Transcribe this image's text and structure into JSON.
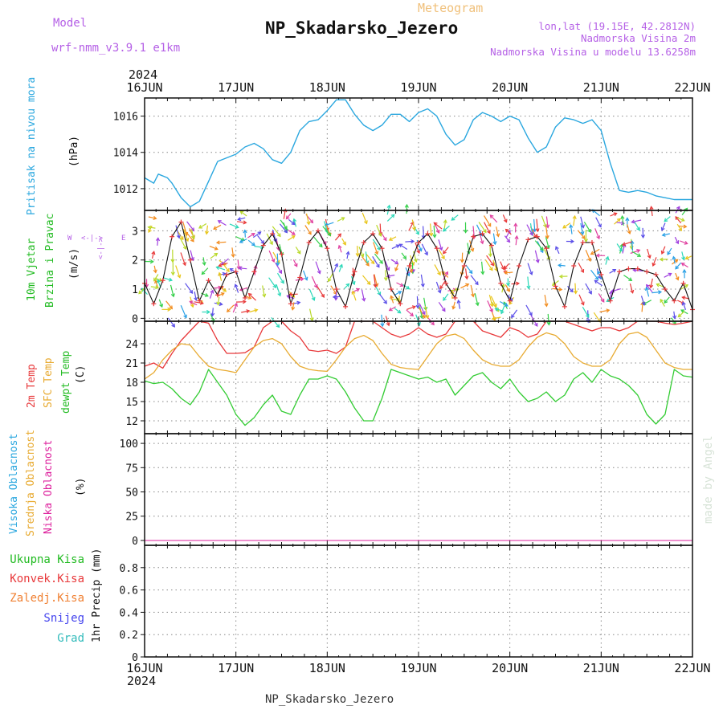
{
  "header": {
    "model_label": "Model",
    "model_name": "wrf-nmm_v3.9.1 e1km",
    "meteogram_label": "Meteogram",
    "station": "NP_Skadarsko_Jezero",
    "lonlat": "lon,lat (19.15E, 42.2812N)",
    "altitude": "Nadmorska Visina 2m",
    "model_altitude": "Nadmorska Visina u modelu 13.6258m",
    "footer_station": "NP_Skadarsko_Jezero",
    "credit": "made by Angel"
  },
  "time_axis": {
    "year_top": "2024",
    "year_bottom": "2024",
    "ticks": [
      "16JUN",
      "17JUN",
      "18JUN",
      "19JUN",
      "20JUN",
      "21JUN",
      "22JUN"
    ]
  },
  "colors": {
    "pressure": "#2aa7df",
    "temp_2m": "#e8383a",
    "sfc_temp": "#e8ab32",
    "dewpoint": "#33cc33",
    "magenta": "#dd1f9c",
    "purple": "#b560e6",
    "green_label": "#22bb22",
    "orange_label": "#f08032",
    "snow_label": "#4444ee",
    "hail_label": "#33bbbb",
    "grid": "#888888",
    "credit": "#d7e3d7"
  },
  "panel_labels": {
    "pressure": {
      "name": "Pritisak na nivou mora",
      "unit": "(hPa)"
    },
    "wind": {
      "line1": "10m Vjetar",
      "line2": "Brzina i Pravac",
      "unit": "(m/s)",
      "compass_n": "N",
      "compass_s": "S",
      "compass_w": "W",
      "compass_e": "E",
      "arrows_h": "<-|->",
      "arrows_v": "<-|->"
    },
    "temp": {
      "t2m": "2m Temp",
      "sfc": "SFC Temp",
      "dewpt": "dewpt Temp",
      "unit": "(C)"
    },
    "cloud": {
      "high": "Visoka Oblacnost",
      "mid": "Srednja Oblacnost",
      "low": "Niska Oblacnost",
      "unit": "(%)"
    },
    "precip": {
      "total": "Ukupna Kisa",
      "conv": "Konvek.Kisa",
      "frz": "Zaledj.Kisa",
      "snow": "Snijeg",
      "hail": "Grad",
      "unit": "1hr Precip (mm)"
    }
  },
  "chart_data": [
    {
      "type": "line",
      "panel": "pressure",
      "ylabel": "(hPa)",
      "ylim": [
        1010.8,
        1017.0
      ],
      "yticks": [
        1012,
        1014,
        1016
      ],
      "series": [
        {
          "name": "Pritisak na nivou mora",
          "x_days": [
            0,
            0.1,
            0.15,
            0.25,
            0.3,
            0.4,
            0.5,
            0.6,
            0.7,
            0.8,
            0.9,
            1.0,
            1.1,
            1.2,
            1.3,
            1.4,
            1.5,
            1.6,
            1.7,
            1.8,
            1.9,
            2.0,
            2.1,
            2.2,
            2.3,
            2.4,
            2.5,
            2.6,
            2.7,
            2.8,
            2.9,
            3.0,
            3.1,
            3.2,
            3.3,
            3.4,
            3.5,
            3.6,
            3.7,
            3.8,
            3.9,
            4.0,
            4.1,
            4.2,
            4.3,
            4.4,
            4.5,
            4.6,
            4.7,
            4.8,
            4.9,
            5.0,
            5.1,
            5.2,
            5.3,
            5.4,
            5.5,
            5.6,
            5.7,
            5.8,
            5.9,
            6.0
          ],
          "values": [
            1012.6,
            1012.3,
            1012.8,
            1012.6,
            1012.3,
            1011.5,
            1011.0,
            1011.3,
            1012.4,
            1013.5,
            1013.7,
            1013.9,
            1014.3,
            1014.5,
            1014.2,
            1013.6,
            1013.4,
            1014.0,
            1015.2,
            1015.7,
            1015.8,
            1016.3,
            1016.9,
            1016.9,
            1016.1,
            1015.5,
            1015.2,
            1015.5,
            1016.1,
            1016.1,
            1015.7,
            1016.2,
            1016.4,
            1016.0,
            1015.0,
            1014.4,
            1014.7,
            1015.8,
            1016.2,
            1016.0,
            1015.7,
            1016.0,
            1015.8,
            1014.8,
            1014.0,
            1014.3,
            1015.4,
            1015.9,
            1015.8,
            1015.6,
            1015.8,
            1015.2,
            1013.4,
            1011.9,
            1011.8,
            1011.9,
            1011.8,
            1011.6,
            1011.5,
            1011.4,
            1011.4,
            1011.4
          ]
        }
      ]
    },
    {
      "type": "line",
      "panel": "wind",
      "ylabel": "(m/s)",
      "ylim": [
        -0.1,
        3.7
      ],
      "yticks": [
        0,
        1,
        2,
        3
      ],
      "series": [
        {
          "name": "Brzina",
          "x_days": [
            0,
            0.1,
            0.2,
            0.3,
            0.4,
            0.5,
            0.6,
            0.7,
            0.8,
            0.9,
            1.0,
            1.1,
            1.2,
            1.3,
            1.4,
            1.5,
            1.6,
            1.7,
            1.8,
            1.9,
            2.0,
            2.1,
            2.2,
            2.3,
            2.4,
            2.5,
            2.6,
            2.7,
            2.8,
            2.9,
            3.0,
            3.1,
            3.2,
            3.3,
            3.4,
            3.5,
            3.6,
            3.7,
            3.8,
            3.9,
            4.0,
            4.1,
            4.2,
            4.3,
            4.4,
            4.5,
            4.6,
            4.7,
            4.8,
            4.9,
            5.0,
            5.1,
            5.2,
            5.3,
            5.4,
            5.5,
            5.6,
            5.7,
            5.8,
            5.9,
            6.0
          ],
          "values": [
            1.2,
            0.5,
            1.3,
            2.8,
            3.3,
            2.0,
            0.6,
            1.3,
            0.8,
            1.5,
            1.6,
            0.7,
            1.6,
            2.5,
            2.9,
            2.2,
            0.5,
            1.4,
            2.6,
            3.0,
            2.4,
            1.0,
            0.4,
            1.6,
            2.6,
            2.9,
            2.4,
            1.0,
            0.5,
            1.8,
            2.6,
            2.9,
            2.4,
            1.2,
            0.7,
            1.8,
            2.8,
            2.9,
            2.5,
            1.2,
            0.6,
            1.8,
            2.7,
            2.8,
            2.4,
            1.1,
            0.4,
            1.8,
            2.6,
            2.6,
            1.5,
            0.6,
            1.6,
            1.7,
            1.7,
            1.6,
            1.5,
            1.0,
            0.6,
            1.2,
            0.3
          ]
        }
      ]
    },
    {
      "type": "line",
      "panel": "temperature",
      "ylabel": "(C)",
      "ylim": [
        10,
        27.5
      ],
      "yticks": [
        12,
        15,
        18,
        21,
        24
      ],
      "series": [
        {
          "name": "2m Temp",
          "x_days": [
            0,
            0.1,
            0.2,
            0.3,
            0.4,
            0.5,
            0.6,
            0.7,
            0.8,
            0.9,
            1.0,
            1.1,
            1.2,
            1.3,
            1.4,
            1.5,
            1.6,
            1.7,
            1.8,
            1.9,
            2.0,
            2.1,
            2.2,
            2.3,
            2.4,
            2.5,
            2.6,
            2.7,
            2.8,
            2.9,
            3.0,
            3.1,
            3.2,
            3.3,
            3.4,
            3.5,
            3.6,
            3.7,
            3.8,
            3.9,
            4.0,
            4.1,
            4.2,
            4.3,
            4.4,
            4.5,
            4.6,
            4.7,
            4.8,
            4.9,
            5.0,
            5.1,
            5.2,
            5.3,
            5.4,
            5.5,
            5.6,
            5.7,
            5.8,
            5.9,
            6.0
          ],
          "values": [
            20.5,
            21.0,
            20.2,
            22.5,
            24.5,
            26.0,
            27.6,
            27.2,
            24.5,
            22.5,
            22.5,
            22.6,
            23.5,
            26.5,
            27.8,
            27.5,
            26.0,
            25.0,
            23.0,
            22.8,
            23.0,
            22.5,
            23.5,
            27.5,
            28.0,
            27.8,
            26.5,
            25.5,
            25.0,
            25.5,
            26.5,
            25.5,
            25.0,
            25.5,
            27.5,
            28.0,
            27.5,
            26.0,
            25.5,
            25.0,
            26.5,
            26.0,
            25.0,
            25.5,
            27.5,
            28.0,
            27.5,
            27.0,
            26.5,
            26.0,
            26.5,
            26.5,
            26.0,
            26.5,
            27.5,
            27.8,
            27.5,
            27.2,
            27.0,
            27.2,
            27.5
          ]
        },
        {
          "name": "SFC Temp",
          "x_days": [
            0,
            0.1,
            0.2,
            0.3,
            0.4,
            0.5,
            0.6,
            0.7,
            0.8,
            0.9,
            1.0,
            1.1,
            1.2,
            1.3,
            1.4,
            1.5,
            1.6,
            1.7,
            1.8,
            1.9,
            2.0,
            2.1,
            2.2,
            2.3,
            2.4,
            2.5,
            2.6,
            2.7,
            2.8,
            2.9,
            3.0,
            3.1,
            3.2,
            3.3,
            3.4,
            3.5,
            3.6,
            3.7,
            3.8,
            3.9,
            4.0,
            4.1,
            4.2,
            4.3,
            4.4,
            4.5,
            4.6,
            4.7,
            4.8,
            4.9,
            5.0,
            5.1,
            5.2,
            5.3,
            5.4,
            5.5,
            5.6,
            5.7,
            5.8,
            5.9,
            6.0
          ],
          "values": [
            18.5,
            19.5,
            21.5,
            23.0,
            24.0,
            23.8,
            22.0,
            20.5,
            20.0,
            19.8,
            19.5,
            21.5,
            23.5,
            24.5,
            24.8,
            24.0,
            22.0,
            20.5,
            20.0,
            19.8,
            19.7,
            21.5,
            23.5,
            24.8,
            25.3,
            24.5,
            22.5,
            20.8,
            20.3,
            20.1,
            20.0,
            22.0,
            24.0,
            25.2,
            25.5,
            24.8,
            23.0,
            21.5,
            20.8,
            20.5,
            20.5,
            21.5,
            23.5,
            25.0,
            25.7,
            25.3,
            24.0,
            22.0,
            21.0,
            20.5,
            20.5,
            21.5,
            24.0,
            25.5,
            25.8,
            25.0,
            23.0,
            21.0,
            20.3,
            20.0,
            20.0
          ]
        },
        {
          "name": "dewpt Temp",
          "x_days": [
            0,
            0.1,
            0.2,
            0.3,
            0.4,
            0.5,
            0.6,
            0.7,
            0.8,
            0.9,
            1.0,
            1.1,
            1.2,
            1.3,
            1.4,
            1.5,
            1.6,
            1.7,
            1.8,
            1.9,
            2.0,
            2.1,
            2.2,
            2.3,
            2.4,
            2.5,
            2.6,
            2.7,
            2.8,
            2.9,
            3.0,
            3.1,
            3.2,
            3.3,
            3.4,
            3.5,
            3.6,
            3.7,
            3.8,
            3.9,
            4.0,
            4.1,
            4.2,
            4.3,
            4.4,
            4.5,
            4.6,
            4.7,
            4.8,
            4.9,
            5.0,
            5.1,
            5.2,
            5.3,
            5.4,
            5.5,
            5.6,
            5.7,
            5.8,
            5.9,
            6.0
          ],
          "values": [
            18.2,
            17.8,
            18.0,
            17.0,
            15.5,
            14.5,
            16.5,
            20.0,
            18.0,
            16.0,
            13.0,
            11.3,
            12.5,
            14.5,
            16.0,
            13.5,
            13.0,
            16.0,
            18.5,
            18.5,
            19.0,
            18.5,
            16.5,
            14.0,
            12.0,
            12.0,
            15.5,
            20.0,
            19.5,
            19.0,
            18.5,
            18.8,
            18.0,
            18.5,
            16.0,
            17.5,
            19.0,
            19.5,
            18.0,
            17.0,
            18.5,
            16.5,
            15.0,
            15.5,
            16.5,
            15.0,
            16.0,
            18.5,
            19.5,
            18.0,
            20.0,
            19.0,
            18.5,
            17.5,
            16.0,
            13.0,
            11.5,
            13.0,
            20.0,
            19.0,
            18.8
          ]
        }
      ]
    },
    {
      "type": "line",
      "panel": "cloud",
      "ylabel": "(%)",
      "ylim": [
        -5,
        110
      ],
      "yticks": [
        0,
        25,
        50,
        75,
        100
      ],
      "series": [
        {
          "name": "Visoka Oblacnost",
          "values": [
            0,
            0
          ]
        },
        {
          "name": "Srednja Oblacnost",
          "values": [
            0,
            0
          ]
        },
        {
          "name": "Niska Oblacnost",
          "values": [
            0,
            0
          ]
        }
      ]
    },
    {
      "type": "line",
      "panel": "precip",
      "ylabel": "1hr Precip (mm)",
      "ylim": [
        0,
        1.0
      ],
      "yticks": [
        0,
        0.2,
        0.4,
        0.6,
        0.8
      ],
      "ytick_labels": [
        "0",
        "0.2",
        "0.4",
        "0.6",
        "0.8"
      ],
      "series": [
        {
          "name": "Ukupna Kisa",
          "values": [
            0,
            0
          ]
        }
      ]
    }
  ]
}
